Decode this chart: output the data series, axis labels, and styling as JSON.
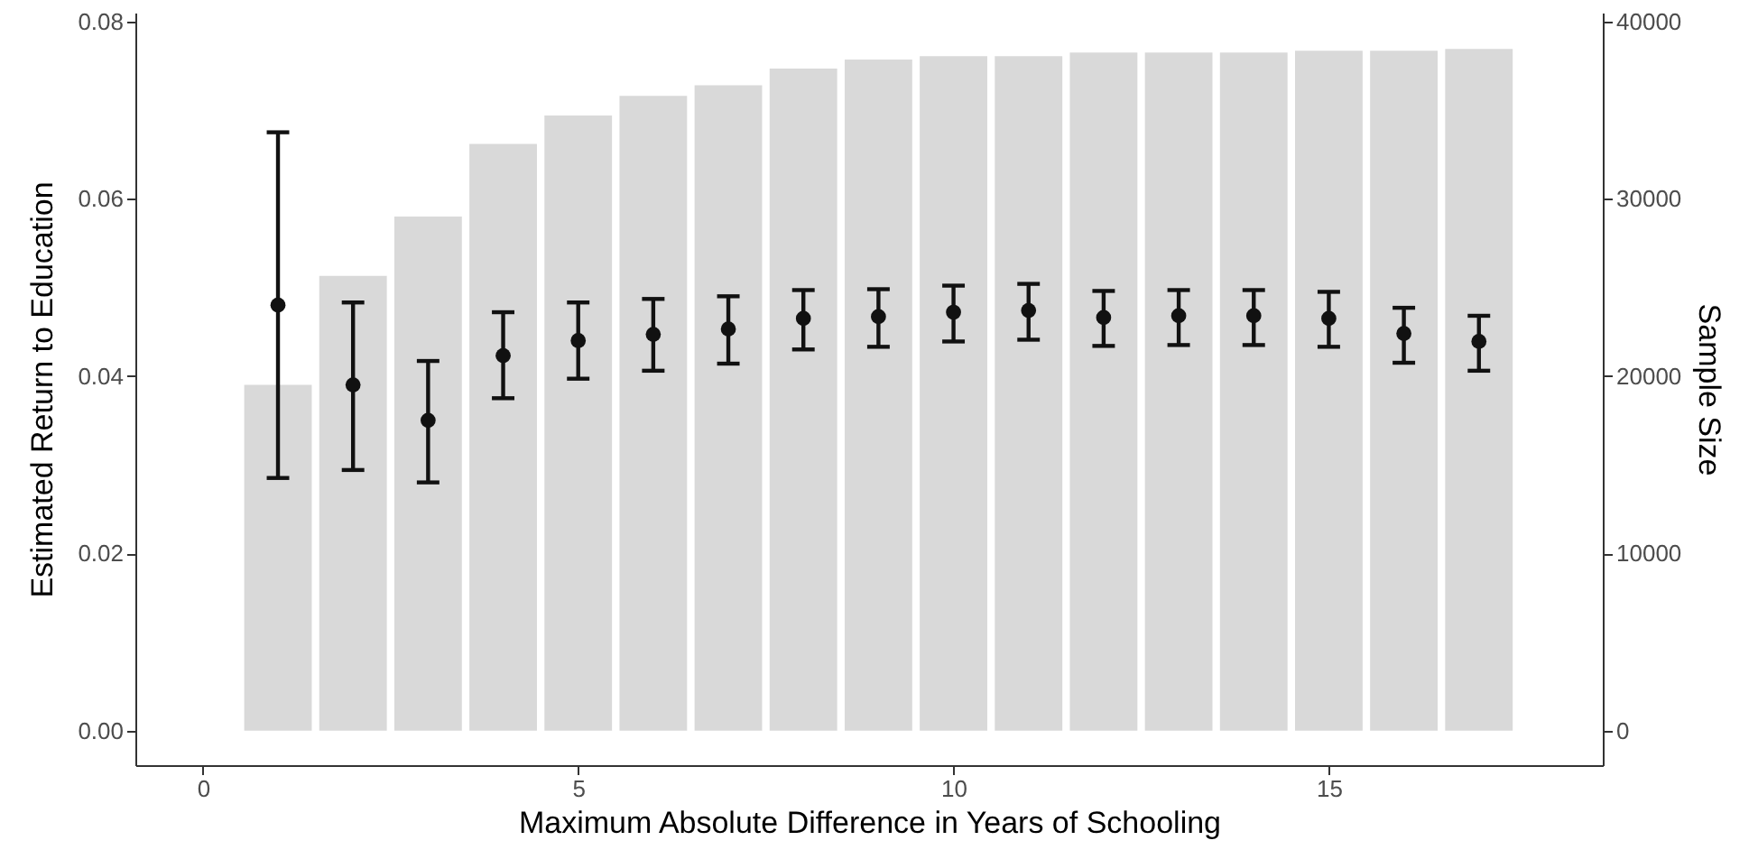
{
  "chart_data": {
    "type": "scatter",
    "xlabel": "Maximum Absolute Difference in Years of Schooling",
    "ylabel": "Estimated Return to Education",
    "y2label": "Sample Size",
    "x": [
      1,
      2,
      3,
      4,
      5,
      6,
      7,
      8,
      9,
      10,
      11,
      12,
      13,
      14,
      15,
      16,
      17
    ],
    "xlim": [
      -0.9,
      18.65
    ],
    "xticks": [
      0,
      5,
      10,
      15
    ],
    "ylim": [
      -0.0039,
      0.081
    ],
    "yticks": [
      {
        "value": 0,
        "label": "0.00"
      },
      {
        "value": 0.02,
        "label": "0.02"
      },
      {
        "value": 0.04,
        "label": "0.04"
      },
      {
        "value": 0.06,
        "label": "0.06"
      },
      {
        "value": 0.08,
        "label": "0.08"
      }
    ],
    "y2lim": [
      -1950,
      40500
    ],
    "y2ticks": [
      0,
      10000,
      20000,
      30000,
      40000
    ],
    "grid": false,
    "marker": "circle",
    "series": [
      {
        "type": "bar",
        "axis": "y2",
        "color": "#d9d9d9",
        "values": [
          19500,
          25650,
          29000,
          33100,
          34700,
          35800,
          36400,
          37350,
          37850,
          38050,
          38050,
          38250,
          38250,
          38250,
          38350,
          38350,
          38450
        ]
      },
      {
        "color": "#111111",
        "values": [
          0.048,
          0.039,
          0.035,
          0.0423,
          0.044,
          0.0447,
          0.0453,
          0.0465,
          0.0467,
          0.0472,
          0.0474,
          0.0466,
          0.0468,
          0.0468,
          0.0465,
          0.0448,
          0.0439
        ],
        "errors": [
          [
            0.0285,
            0.0675
          ],
          [
            0.0294,
            0.0483
          ],
          [
            0.028,
            0.0417
          ],
          [
            0.0375,
            0.0472
          ],
          [
            0.0397,
            0.0483
          ],
          [
            0.0406,
            0.0487
          ],
          [
            0.0414,
            0.049
          ],
          [
            0.043,
            0.0497
          ],
          [
            0.0433,
            0.0498
          ],
          [
            0.0439,
            0.0502
          ],
          [
            0.0441,
            0.0504
          ],
          [
            0.0434,
            0.0496
          ],
          [
            0.0435,
            0.0497
          ],
          [
            0.0435,
            0.0497
          ],
          [
            0.0433,
            0.0495
          ],
          [
            0.0415,
            0.0477
          ],
          [
            0.0406,
            0.0468
          ]
        ]
      }
    ]
  }
}
